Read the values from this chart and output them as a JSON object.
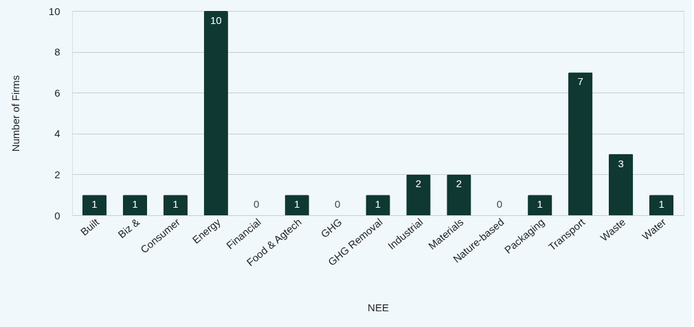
{
  "chart_data": {
    "type": "bar",
    "xlabel": "NEE",
    "ylabel": "Number of Firms",
    "categories": [
      "Built",
      "Biz &",
      "Consumer",
      "Energy",
      "Financial",
      "Food & Agtech",
      "GHG",
      "GHG Removal",
      "Industrial",
      "Materials",
      "Nature-based",
      "Packaging",
      "Transport",
      "Waste",
      "Water"
    ],
    "values": [
      1,
      1,
      1,
      10,
      0,
      1,
      0,
      1,
      2,
      2,
      0,
      1,
      7,
      3,
      1
    ],
    "color": "#0f3832",
    "ylim": [
      0,
      10
    ],
    "yticks": [
      0,
      2,
      4,
      6,
      8,
      10
    ],
    "grid": "y",
    "data_labels": true
  }
}
